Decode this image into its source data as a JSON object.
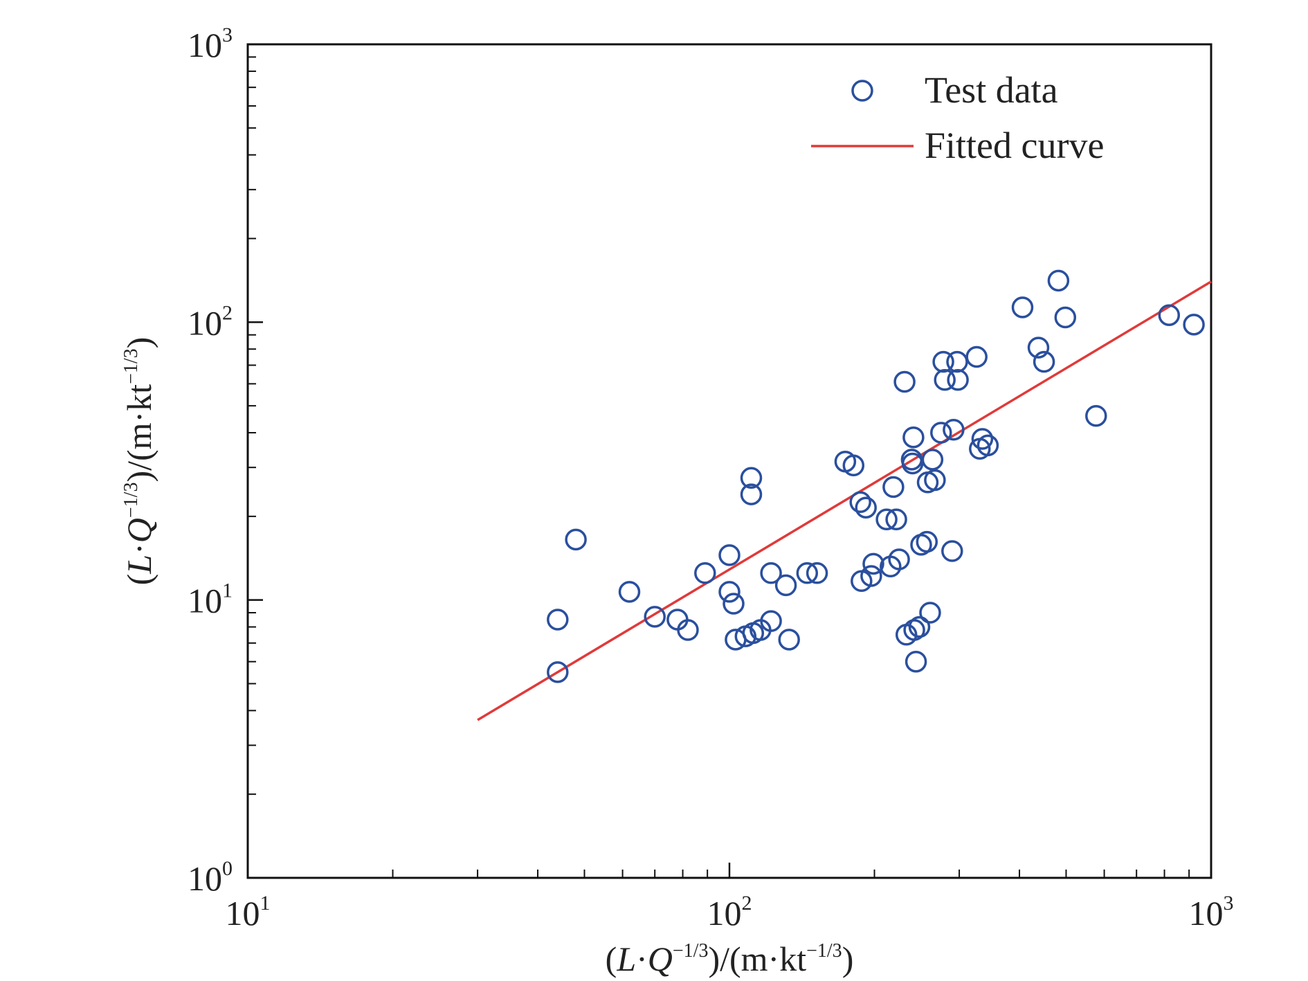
{
  "chart_data": {
    "type": "scatter",
    "x_scale": "log",
    "y_scale": "log",
    "xlim": [
      10,
      1000
    ],
    "ylim": [
      1,
      1000
    ],
    "grid": false,
    "legend_position": "top-right",
    "colors": {
      "points": "#2a4f9e",
      "fit": "#e03a3a",
      "axis": "#111111"
    },
    "xlabel": {
      "open": "(",
      "var1": "L",
      "dot": "·",
      "var2": "Q",
      "exp1": "−1/3",
      "mid": ")/(m·kt",
      "exp2": "−1/3",
      "close": ")"
    },
    "ylabel": {
      "open": "(",
      "var1": "L",
      "dot": "·",
      "var2": "Q",
      "exp1": "−1/3",
      "mid": ")/(m·kt",
      "exp2": "−1/3",
      "close": ")"
    },
    "x_ticks": [
      {
        "value": 10,
        "base": "10",
        "exp": "1"
      },
      {
        "value": 100,
        "base": "10",
        "exp": "2"
      },
      {
        "value": 1000,
        "base": "10",
        "exp": "3"
      }
    ],
    "y_ticks": [
      {
        "value": 1,
        "base": "10",
        "exp": "0"
      },
      {
        "value": 10,
        "base": "10",
        "exp": "1"
      },
      {
        "value": 100,
        "base": "10",
        "exp": "2"
      },
      {
        "value": 1000,
        "base": "10",
        "exp": "3"
      }
    ],
    "series": [
      {
        "name": "Test data",
        "kind": "marker",
        "points": [
          [
            44,
            8.5
          ],
          [
            44,
            5.5
          ],
          [
            48,
            16.5
          ],
          [
            62,
            10.7
          ],
          [
            70,
            8.7
          ],
          [
            78,
            8.5
          ],
          [
            82,
            7.8
          ],
          [
            89,
            12.5
          ],
          [
            100,
            14.5
          ],
          [
            100,
            10.7
          ],
          [
            102,
            9.7
          ],
          [
            103,
            7.2
          ],
          [
            108,
            7.4
          ],
          [
            111,
            27.5
          ],
          [
            111,
            24
          ],
          [
            112,
            7.6
          ],
          [
            116,
            7.8
          ],
          [
            122,
            12.5
          ],
          [
            122,
            8.4
          ],
          [
            131,
            11.3
          ],
          [
            133,
            7.2
          ],
          [
            145,
            12.5
          ],
          [
            152,
            12.5
          ],
          [
            174,
            31.5
          ],
          [
            181,
            30.5
          ],
          [
            187,
            22.5
          ],
          [
            188,
            11.7
          ],
          [
            192,
            21.5
          ],
          [
            197,
            12.2
          ],
          [
            199,
            13.5
          ],
          [
            212,
            19.5
          ],
          [
            216,
            13.2
          ],
          [
            219,
            25.5
          ],
          [
            222,
            19.5
          ],
          [
            225,
            14
          ],
          [
            231,
            61
          ],
          [
            233,
            7.5
          ],
          [
            239,
            32
          ],
          [
            240,
            31
          ],
          [
            241,
            38.5
          ],
          [
            242,
            7.8
          ],
          [
            244,
            6
          ],
          [
            248,
            8
          ],
          [
            250,
            15.8
          ],
          [
            257,
            16.2
          ],
          [
            258,
            26.5
          ],
          [
            261,
            9
          ],
          [
            264,
            32
          ],
          [
            267,
            27
          ],
          [
            275,
            40
          ],
          [
            278,
            72
          ],
          [
            280,
            62
          ],
          [
            290,
            15
          ],
          [
            292,
            41
          ],
          [
            297,
            72
          ],
          [
            298,
            62
          ],
          [
            326,
            75
          ],
          [
            331,
            35
          ],
          [
            335,
            38
          ],
          [
            344,
            36
          ],
          [
            406,
            113
          ],
          [
            438,
            81
          ],
          [
            450,
            72
          ],
          [
            482,
            141
          ],
          [
            498,
            104
          ],
          [
            577,
            46
          ],
          [
            818,
            106
          ],
          [
            921,
            98
          ]
        ]
      },
      {
        "name": "Fitted curve",
        "kind": "line",
        "points": [
          [
            30,
            3.7
          ],
          [
            1000,
            140
          ]
        ]
      }
    ]
  }
}
